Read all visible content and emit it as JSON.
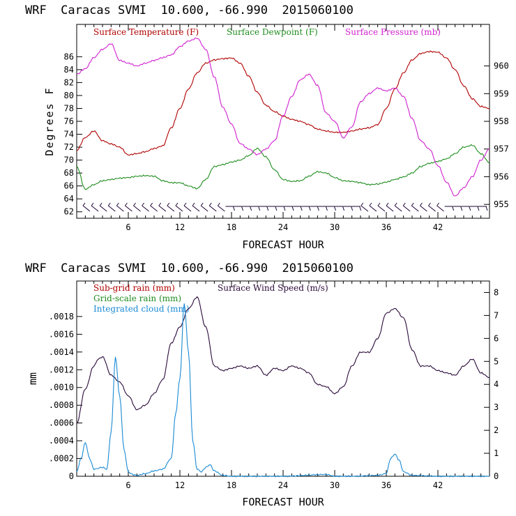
{
  "chart_data": [
    {
      "type": "line",
      "title": "WRF  Caracas SVMI  10.600, -66.990  2015060100",
      "xlabel": "FORECAST HOUR",
      "ylabel": "Degrees F",
      "xlim": [
        0,
        48
      ],
      "ylim": [
        61,
        91
      ],
      "y2lim": [
        954.5,
        961.5
      ],
      "xticks": [
        6,
        12,
        18,
        24,
        30,
        36,
        42
      ],
      "yticks": [
        62,
        64,
        66,
        68,
        70,
        72,
        74,
        76,
        78,
        80,
        82,
        84,
        86
      ],
      "y2ticks": [
        955,
        956,
        957,
        958,
        959,
        960
      ],
      "legend": [
        {
          "label": "Surface Temperature (F)",
          "color": "#b00000"
        },
        {
          "label": "Surface Dewpoint (F)",
          "color": "#1e8c1e"
        },
        {
          "label": "Surface Pressure (mb)",
          "color": "#d020d0"
        }
      ],
      "series": [
        {
          "name": "Surface Temperature (F)",
          "axis": "left",
          "color": "#b00000",
          "x": [
            0,
            1,
            2,
            3,
            4,
            5,
            6,
            7,
            8,
            9,
            10,
            11,
            12,
            13,
            14,
            15,
            16,
            17,
            18,
            19,
            20,
            21,
            22,
            23,
            24,
            25,
            26,
            27,
            28,
            29,
            30,
            31,
            32,
            33,
            34,
            35,
            36,
            37,
            38,
            39,
            40,
            41,
            42,
            43,
            44,
            45,
            46,
            47,
            48
          ],
          "y": [
            71.5,
            73.5,
            74.5,
            73.0,
            72.5,
            72.0,
            70.8,
            71.0,
            71.3,
            71.8,
            72.2,
            75.0,
            78.0,
            81.0,
            83.5,
            85.0,
            85.5,
            85.7,
            85.8,
            85.0,
            83.0,
            80.5,
            78.5,
            77.5,
            76.8,
            76.3,
            76.0,
            75.5,
            74.8,
            74.5,
            74.3,
            74.3,
            74.5,
            74.8,
            75.0,
            75.5,
            78.0,
            81.0,
            83.5,
            85.5,
            86.5,
            86.8,
            86.7,
            85.8,
            84.0,
            81.5,
            79.5,
            78.3,
            78.0
          ]
        },
        {
          "name": "Surface Dewpoint (F)",
          "axis": "left",
          "color": "#1e8c1e",
          "x": [
            0,
            1,
            2,
            3,
            4,
            5,
            6,
            7,
            8,
            9,
            10,
            11,
            12,
            13,
            14,
            15,
            16,
            17,
            18,
            19,
            20,
            21,
            22,
            23,
            24,
            25,
            26,
            27,
            28,
            29,
            30,
            31,
            32,
            33,
            34,
            35,
            36,
            37,
            38,
            39,
            40,
            41,
            42,
            43,
            44,
            45,
            46,
            47,
            48
          ],
          "y": [
            69.0,
            65.5,
            66.2,
            66.8,
            67.0,
            67.2,
            67.3,
            67.5,
            67.6,
            67.5,
            66.8,
            66.5,
            66.5,
            66.0,
            65.6,
            67.0,
            69.0,
            69.3,
            69.7,
            70.0,
            70.7,
            71.8,
            70.5,
            68.5,
            67.0,
            66.7,
            66.8,
            67.5,
            68.2,
            68.0,
            67.3,
            66.8,
            66.7,
            66.5,
            66.2,
            66.3,
            66.6,
            67.0,
            67.4,
            68.0,
            69.0,
            69.5,
            69.8,
            70.2,
            71.0,
            72.0,
            72.3,
            71.0,
            69.6
          ]
        },
        {
          "name": "Surface Pressure (mb)",
          "axis": "right",
          "color": "#d020d0",
          "x": [
            0,
            1,
            2,
            3,
            4,
            5,
            6,
            7,
            8,
            9,
            10,
            11,
            12,
            13,
            14,
            15,
            16,
            17,
            18,
            19,
            20,
            21,
            22,
            23,
            24,
            25,
            26,
            27,
            28,
            29,
            30,
            31,
            32,
            33,
            34,
            35,
            36,
            37,
            38,
            39,
            40,
            41,
            42,
            43,
            44,
            45,
            46,
            47,
            48
          ],
          "y": [
            959.7,
            959.9,
            960.3,
            960.6,
            960.8,
            960.2,
            960.1,
            960.0,
            960.1,
            960.2,
            960.3,
            960.4,
            960.7,
            960.9,
            961.0,
            960.6,
            959.6,
            958.5,
            957.9,
            957.2,
            957.0,
            956.8,
            957.0,
            957.3,
            958.2,
            958.9,
            959.5,
            959.7,
            959.3,
            958.3,
            958.0,
            957.4,
            957.8,
            958.7,
            959.0,
            959.2,
            959.1,
            959.2,
            958.9,
            958.1,
            957.3,
            957.0,
            956.4,
            955.8,
            955.3,
            955.6,
            956.0,
            956.6,
            957.0
          ]
        }
      ],
      "wind_barbs": {
        "count": 48,
        "color": "#1a0033"
      }
    },
    {
      "type": "line",
      "title": "WRF  Caracas SVMI  10.600, -66.990  2015060100",
      "xlabel": "FORECAST HOUR",
      "ylabel": "mm",
      "xlim": [
        0,
        48
      ],
      "ylim": [
        0,
        0.0022
      ],
      "y2lim": [
        0,
        8.5
      ],
      "xticks": [
        6,
        12,
        18,
        24,
        30,
        36,
        42
      ],
      "yticks": [
        0,
        0.0002,
        0.0004,
        0.0006,
        0.0008,
        0.001,
        0.0012,
        0.0014,
        0.0016,
        0.0018
      ],
      "ytick_labels": [
        "0",
        ".0002",
        ".0004",
        ".0006",
        ".0008",
        ".0010",
        ".0012",
        ".0014",
        ".0016",
        ".0018"
      ],
      "y2ticks": [
        0,
        1,
        2,
        3,
        4,
        5,
        6,
        7,
        8
      ],
      "legend": [
        {
          "label": "Sub-grid rain (mm)",
          "color": "#b00000"
        },
        {
          "label": "Surface Wind Speed (m/s)",
          "color": "#2a0a3a"
        },
        {
          "label": "Grid-scale rain (mm)",
          "color": "#1e8c1e"
        },
        {
          "label": "Integrated cloud (mm)",
          "color": "#1a8ad4"
        }
      ],
      "series": [
        {
          "name": "Surface Wind Speed (m/s)",
          "axis": "right",
          "color": "#2a0a3a",
          "x": [
            0,
            1,
            2,
            2.5,
            3,
            4,
            5,
            6,
            7,
            8,
            9,
            10,
            11,
            12,
            13,
            14,
            15,
            16,
            17,
            18,
            19,
            20,
            21,
            22,
            23,
            24,
            25,
            26,
            27,
            28,
            29,
            30,
            31,
            32,
            33,
            34,
            35,
            36,
            37,
            38,
            39,
            40,
            41,
            42,
            43,
            44,
            45,
            46,
            47,
            48
          ],
          "y": [
            2.3,
            3.8,
            4.8,
            5.1,
            5.2,
            4.4,
            4.1,
            3.5,
            2.9,
            3.1,
            3.6,
            4.2,
            5.8,
            6.5,
            7.3,
            7.8,
            6.5,
            4.8,
            4.6,
            4.7,
            4.8,
            4.7,
            4.8,
            4.4,
            4.7,
            4.6,
            4.8,
            4.7,
            4.5,
            4.0,
            3.9,
            3.6,
            3.9,
            4.8,
            5.4,
            5.4,
            6.0,
            7.1,
            7.3,
            6.9,
            5.5,
            4.8,
            4.8,
            4.6,
            4.5,
            4.4,
            4.8,
            5.1,
            4.5,
            4.3
          ]
        },
        {
          "name": "Integrated cloud (mm)",
          "axis": "left",
          "color": "#1a8ad4",
          "x": [
            0,
            0.5,
            1,
            1.5,
            2,
            3,
            3.5,
            4,
            4.5,
            5,
            5.5,
            6,
            6.5,
            7,
            8,
            9,
            10,
            11,
            11.5,
            12,
            12.5,
            13,
            13.5,
            14,
            14.5,
            15,
            15.5,
            16,
            17,
            18,
            20,
            24,
            29,
            30,
            32,
            35,
            36,
            36.5,
            37,
            37.5,
            38,
            39,
            42,
            48
          ],
          "y": [
            5e-05,
            0.0002,
            0.00038,
            0.0002,
            8e-05,
            0.0001,
            8e-05,
            0.0005,
            0.00134,
            0.0009,
            0.0003,
            5e-05,
            2e-05,
            1e-05,
            3e-05,
            6e-05,
            8e-05,
            0.0002,
            0.0007,
            0.0011,
            0.00195,
            0.0014,
            0.0004,
            8e-05,
            5e-05,
            0.0001,
            0.00013,
            6e-05,
            1e-05,
            0.0,
            0.0,
            0.0,
            2e-05,
            0.0,
            0.0,
            1e-05,
            3e-05,
            0.0002,
            0.00025,
            0.00018,
            5e-05,
            1e-05,
            0.0,
            0.0
          ]
        }
      ]
    }
  ]
}
